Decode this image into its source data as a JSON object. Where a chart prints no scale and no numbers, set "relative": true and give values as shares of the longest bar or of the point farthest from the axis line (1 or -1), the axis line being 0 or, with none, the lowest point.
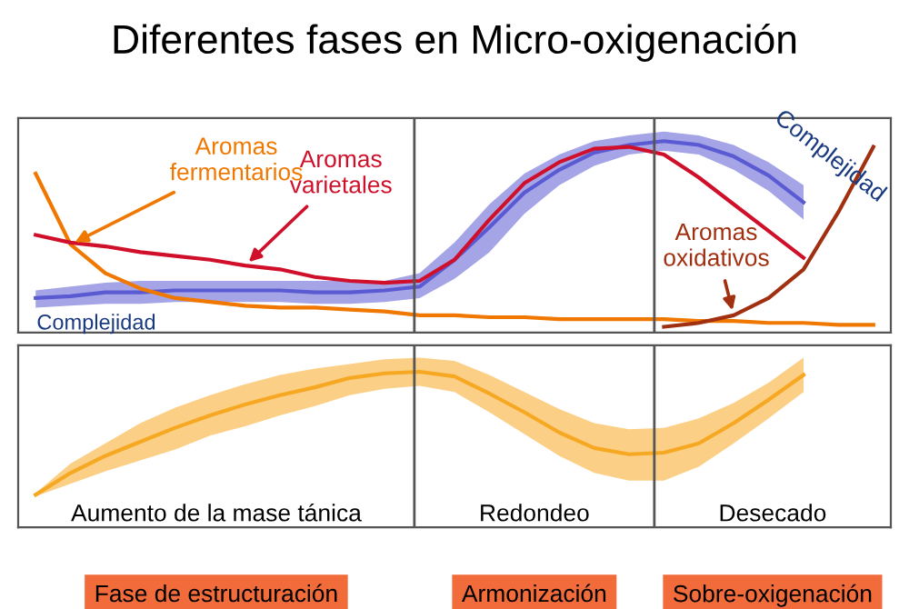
{
  "chart_data": [
    {
      "type": "line",
      "title": "Diferentes fases en Micro-oxigenación",
      "relative": true,
      "line_style": "solid",
      "categories": [
        null,
        null,
        null,
        null,
        null,
        null,
        null,
        null,
        null,
        null,
        null,
        null,
        null,
        null,
        null,
        null,
        null,
        null,
        null,
        null,
        null,
        null,
        null,
        null,
        null
      ],
      "series": [
        {
          "name": "Complejidad",
          "color": "#5a5ad2",
          "values": [
            0.18,
            0.19,
            0.21,
            0.21,
            0.22,
            0.22,
            0.22,
            0.22,
            0.21,
            0.21,
            0.22,
            0.24,
            0.38,
            0.55,
            0.73,
            0.85,
            0.94,
            0.98,
            1.0,
            0.98,
            0.92,
            0.82,
            0.68,
            null,
            null
          ],
          "upper": [
            0.22,
            0.24,
            0.26,
            0.27,
            0.27,
            0.27,
            0.27,
            0.27,
            0.27,
            0.27,
            0.27,
            0.31,
            0.47,
            0.67,
            0.83,
            0.93,
            1.0,
            1.03,
            1.05,
            1.03,
            0.98,
            0.89,
            0.77,
            null,
            null
          ],
          "lower": [
            0.13,
            0.14,
            0.15,
            0.15,
            0.16,
            0.16,
            0.16,
            0.16,
            0.15,
            0.15,
            0.16,
            0.18,
            0.28,
            0.42,
            0.62,
            0.77,
            0.87,
            0.93,
            0.95,
            0.93,
            0.85,
            0.74,
            0.59,
            null,
            null
          ]
        },
        {
          "name": "Aromas fermentarios",
          "color": "#f07800",
          "values": [
            0.83,
            0.46,
            0.31,
            0.23,
            0.18,
            0.16,
            0.14,
            0.13,
            0.13,
            0.12,
            0.11,
            0.09,
            0.09,
            0.08,
            0.08,
            0.07,
            0.07,
            0.07,
            0.07,
            0.06,
            0.06,
            0.05,
            0.05,
            0.04,
            0.04
          ]
        },
        {
          "name": "Aromas varietales",
          "color": "#d0102a",
          "values": [
            0.51,
            0.47,
            0.45,
            0.42,
            0.4,
            0.38,
            0.35,
            0.33,
            0.29,
            0.27,
            0.26,
            0.27,
            0.38,
            0.59,
            0.78,
            0.89,
            0.96,
            0.97,
            0.93,
            0.81,
            0.67,
            0.53,
            0.39,
            null,
            null
          ]
        },
        {
          "name": "Aromas oxidativos",
          "color": "#a03010",
          "values": [
            null,
            null,
            null,
            null,
            null,
            null,
            null,
            null,
            null,
            null,
            null,
            null,
            null,
            null,
            null,
            null,
            null,
            null,
            0.03,
            0.05,
            0.09,
            0.18,
            0.33,
            0.63,
            0.97
          ]
        }
      ]
    },
    {
      "type": "line",
      "relative": true,
      "line_style": "solid",
      "categories": [
        null,
        null,
        null,
        null,
        null,
        null,
        null,
        null,
        null,
        null,
        null,
        null,
        null,
        null,
        null,
        null,
        null,
        null,
        null,
        null,
        null,
        null,
        null,
        null,
        null
      ],
      "series": [
        {
          "color": "#f7a823",
          "values": [
            0.21,
            0.35,
            0.46,
            0.55,
            0.64,
            0.72,
            0.79,
            0.85,
            0.9,
            0.96,
            0.99,
            1.0,
            0.97,
            0.86,
            0.74,
            0.61,
            0.51,
            0.47,
            0.48,
            0.54,
            0.67,
            0.82,
            0.98,
            null,
            null
          ],
          "upper": [
            0.22,
            0.41,
            0.54,
            0.67,
            0.77,
            0.85,
            0.92,
            0.98,
            1.02,
            1.05,
            1.08,
            1.09,
            1.07,
            0.98,
            0.87,
            0.76,
            0.67,
            0.63,
            0.64,
            0.7,
            0.8,
            0.93,
            1.09,
            null,
            null
          ],
          "lower": [
            0.2,
            0.28,
            0.36,
            0.43,
            0.5,
            0.59,
            0.65,
            0.72,
            0.78,
            0.85,
            0.89,
            0.91,
            0.87,
            0.74,
            0.6,
            0.46,
            0.35,
            0.3,
            0.3,
            0.39,
            0.54,
            0.7,
            0.87,
            null,
            null
          ]
        }
      ],
      "annotations": [
        "Aumento de la mase tánica",
        "Redondeo",
        "Desecado",
        "Fase de estructuración",
        "Armonización",
        "Sobre-oxigenación"
      ]
    }
  ]
}
